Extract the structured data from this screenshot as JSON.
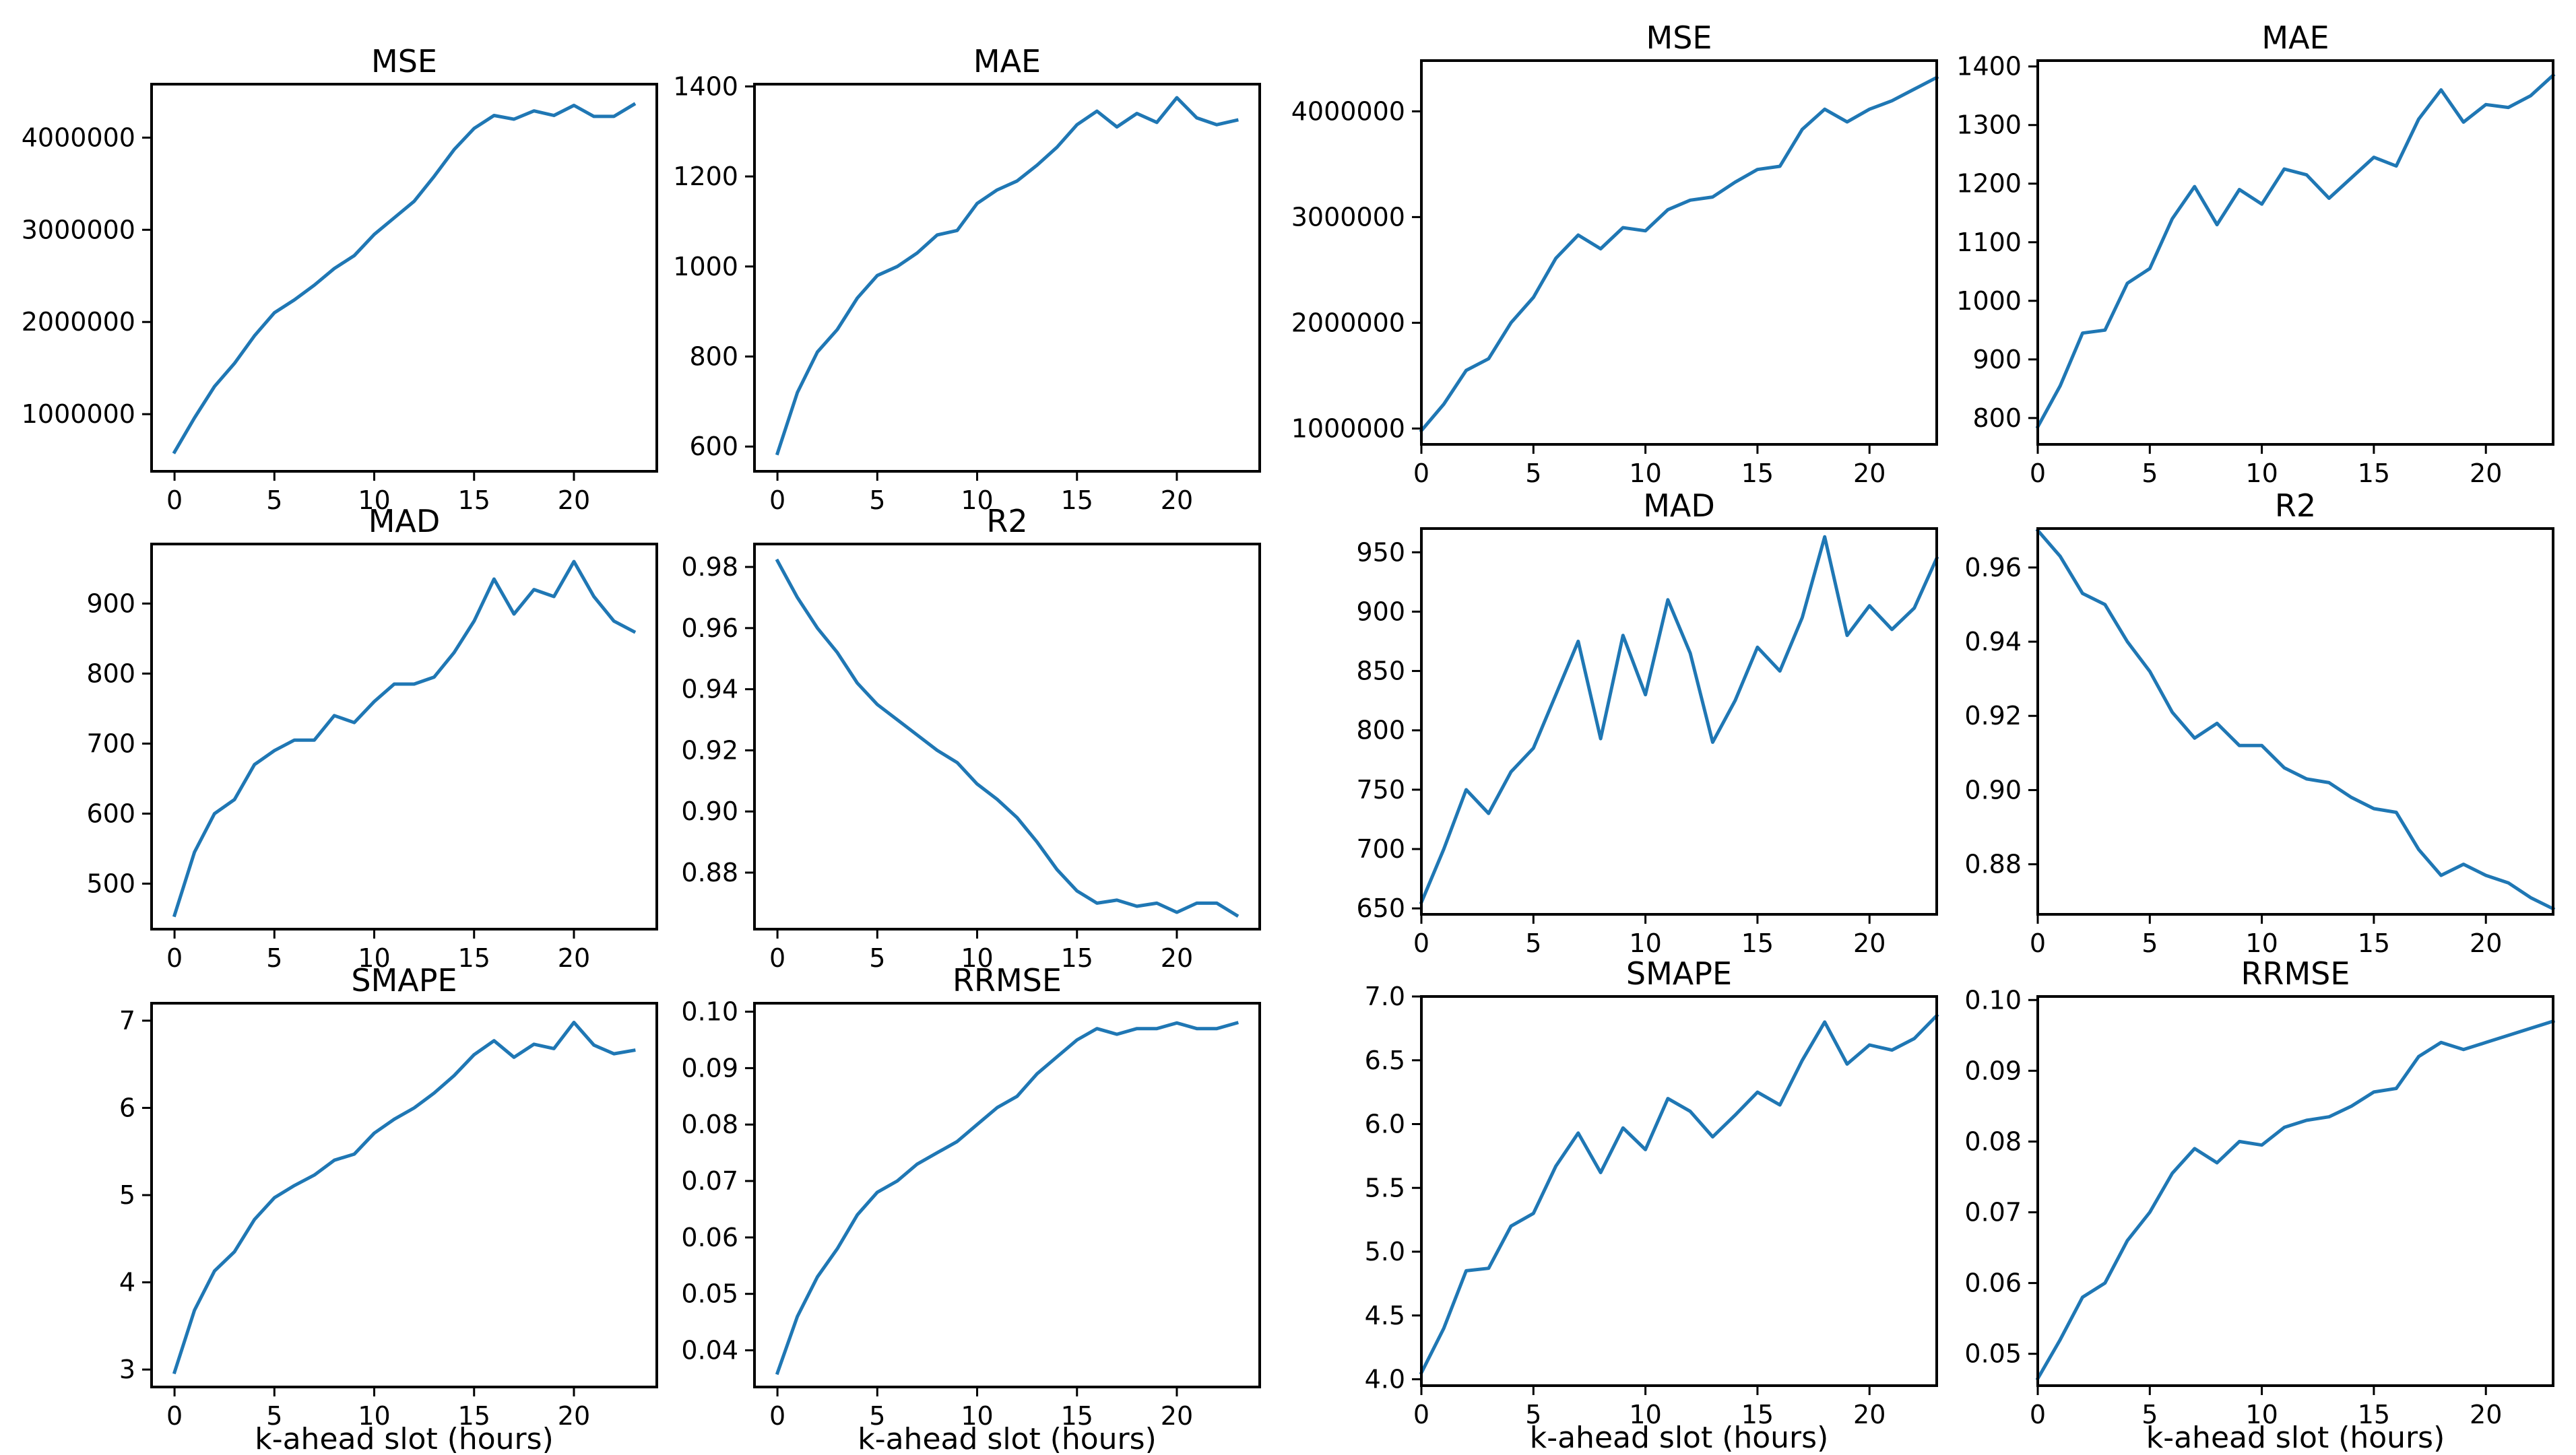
{
  "colors": {
    "line": "#1f77b4",
    "axis": "#000000",
    "background": "#ffffff"
  },
  "chart_data": [
    {
      "id": "left-mse",
      "type": "line",
      "title": "MSE",
      "xlabel": "",
      "xlim": [
        -1.15,
        24.15
      ],
      "ylim": [
        380000,
        4580000
      ],
      "xticks": [
        0,
        5,
        10,
        15,
        20
      ],
      "xtick_labels": [
        "0",
        "5",
        "10",
        "15",
        "20"
      ],
      "yticks": [
        1000000,
        2000000,
        3000000,
        4000000
      ],
      "ytick_labels": [
        "1000000",
        "2000000",
        "3000000",
        "4000000"
      ],
      "x": [
        0,
        1,
        2,
        3,
        4,
        5,
        6,
        7,
        8,
        9,
        10,
        11,
        12,
        13,
        14,
        15,
        16,
        17,
        18,
        19,
        20,
        21,
        22,
        23
      ],
      "values": [
        590000,
        960000,
        1300000,
        1550000,
        1850000,
        2100000,
        2240000,
        2400000,
        2580000,
        2720000,
        2950000,
        3130000,
        3310000,
        3580000,
        3870000,
        4100000,
        4240000,
        4200000,
        4290000,
        4240000,
        4350000,
        4230000,
        4230000,
        4360000
      ]
    },
    {
      "id": "left-mae",
      "type": "line",
      "title": "MAE",
      "xlabel": "",
      "xlim": [
        -1.15,
        24.15
      ],
      "ylim": [
        545,
        1405
      ],
      "xticks": [
        0,
        5,
        10,
        15,
        20
      ],
      "xtick_labels": [
        "0",
        "5",
        "10",
        "15",
        "20"
      ],
      "yticks": [
        600,
        800,
        1000,
        1200,
        1400
      ],
      "ytick_labels": [
        "600",
        "800",
        "1000",
        "1200",
        "1400"
      ],
      "x": [
        0,
        1,
        2,
        3,
        4,
        5,
        6,
        7,
        8,
        9,
        10,
        11,
        12,
        13,
        14,
        15,
        16,
        17,
        18,
        19,
        20,
        21,
        22,
        23
      ],
      "values": [
        585,
        720,
        810,
        860,
        930,
        980,
        1000,
        1030,
        1070,
        1080,
        1140,
        1170,
        1190,
        1225,
        1265,
        1315,
        1345,
        1310,
        1340,
        1320,
        1375,
        1330,
        1315,
        1325
      ]
    },
    {
      "id": "right-mse",
      "type": "line",
      "title": "MSE",
      "xlabel": "",
      "xlim": [
        0,
        23
      ],
      "ylim": [
        850000,
        4480000
      ],
      "xticks": [
        0,
        5,
        10,
        15,
        20
      ],
      "xtick_labels": [
        "0",
        "5",
        "10",
        "15",
        "20"
      ],
      "yticks": [
        1000000,
        2000000,
        3000000,
        4000000
      ],
      "ytick_labels": [
        "1000000",
        "2000000",
        "3000000",
        "4000000"
      ],
      "x": [
        0,
        1,
        2,
        3,
        4,
        5,
        6,
        7,
        8,
        9,
        10,
        11,
        12,
        13,
        14,
        15,
        16,
        17,
        18,
        19,
        20,
        21,
        22,
        23
      ],
      "values": [
        980000,
        1230000,
        1550000,
        1660000,
        2000000,
        2240000,
        2610000,
        2830000,
        2700000,
        2900000,
        2870000,
        3070000,
        3160000,
        3190000,
        3330000,
        3450000,
        3480000,
        3830000,
        4020000,
        3900000,
        4020000,
        4100000,
        4210000,
        4320000
      ]
    },
    {
      "id": "right-mae",
      "type": "line",
      "title": "MAE",
      "xlabel": "",
      "xlim": [
        0,
        23
      ],
      "ylim": [
        755,
        1410
      ],
      "xticks": [
        0,
        5,
        10,
        15,
        20
      ],
      "xtick_labels": [
        "0",
        "5",
        "10",
        "15",
        "20"
      ],
      "yticks": [
        800,
        900,
        1000,
        1100,
        1200,
        1300,
        1400
      ],
      "ytick_labels": [
        "800",
        "900",
        "1000",
        "1100",
        "1200",
        "1300",
        "1400"
      ],
      "x": [
        0,
        1,
        2,
        3,
        4,
        5,
        6,
        7,
        8,
        9,
        10,
        11,
        12,
        13,
        14,
        15,
        16,
        17,
        18,
        19,
        20,
        21,
        22,
        23
      ],
      "values": [
        785,
        855,
        945,
        950,
        1030,
        1055,
        1140,
        1195,
        1130,
        1190,
        1165,
        1225,
        1215,
        1175,
        1210,
        1245,
        1230,
        1310,
        1360,
        1305,
        1335,
        1330,
        1350,
        1385
      ]
    },
    {
      "id": "left-mad",
      "type": "line",
      "title": "MAD",
      "xlabel": "",
      "xlim": [
        -1.15,
        24.15
      ],
      "ylim": [
        435,
        985
      ],
      "xticks": [
        0,
        5,
        10,
        15,
        20
      ],
      "xtick_labels": [
        "0",
        "5",
        "10",
        "15",
        "20"
      ],
      "yticks": [
        500,
        600,
        700,
        800,
        900
      ],
      "ytick_labels": [
        "500",
        "600",
        "700",
        "800",
        "900"
      ],
      "x": [
        0,
        1,
        2,
        3,
        4,
        5,
        6,
        7,
        8,
        9,
        10,
        11,
        12,
        13,
        14,
        15,
        16,
        17,
        18,
        19,
        20,
        21,
        22,
        23
      ],
      "values": [
        455,
        545,
        600,
        620,
        670,
        690,
        705,
        705,
        740,
        730,
        760,
        785,
        785,
        795,
        830,
        875,
        935,
        885,
        920,
        910,
        960,
        910,
        875,
        860
      ]
    },
    {
      "id": "left-r2",
      "type": "line",
      "title": "R2",
      "xlabel": "",
      "xlim": [
        -1.15,
        24.15
      ],
      "ylim": [
        0.8615,
        0.9875
      ],
      "xticks": [
        0,
        5,
        10,
        15,
        20
      ],
      "xtick_labels": [
        "0",
        "5",
        "10",
        "15",
        "20"
      ],
      "yticks": [
        0.88,
        0.9,
        0.92,
        0.94,
        0.96,
        0.98
      ],
      "ytick_labels": [
        "0.88",
        "0.90",
        "0.92",
        "0.94",
        "0.96",
        "0.98"
      ],
      "x": [
        0,
        1,
        2,
        3,
        4,
        5,
        6,
        7,
        8,
        9,
        10,
        11,
        12,
        13,
        14,
        15,
        16,
        17,
        18,
        19,
        20,
        21,
        22,
        23
      ],
      "values": [
        0.982,
        0.97,
        0.96,
        0.952,
        0.942,
        0.935,
        0.93,
        0.925,
        0.92,
        0.916,
        0.909,
        0.904,
        0.898,
        0.89,
        0.881,
        0.874,
        0.87,
        0.871,
        0.869,
        0.87,
        0.867,
        0.87,
        0.87,
        0.866
      ]
    },
    {
      "id": "right-mad",
      "type": "line",
      "title": "MAD",
      "xlabel": "",
      "xlim": [
        0,
        23
      ],
      "ylim": [
        645,
        970
      ],
      "xticks": [
        0,
        5,
        10,
        15,
        20
      ],
      "xtick_labels": [
        "0",
        "5",
        "10",
        "15",
        "20"
      ],
      "yticks": [
        650,
        700,
        750,
        800,
        850,
        900,
        950
      ],
      "ytick_labels": [
        "650",
        "700",
        "750",
        "800",
        "850",
        "900",
        "950"
      ],
      "x": [
        0,
        1,
        2,
        3,
        4,
        5,
        6,
        7,
        8,
        9,
        10,
        11,
        12,
        13,
        14,
        15,
        16,
        17,
        18,
        19,
        20,
        21,
        22,
        23
      ],
      "values": [
        655,
        700,
        750,
        730,
        765,
        785,
        830,
        875,
        793,
        880,
        830,
        910,
        865,
        790,
        825,
        870,
        850,
        895,
        963,
        880,
        905,
        885,
        903,
        945
      ]
    },
    {
      "id": "right-r2",
      "type": "line",
      "title": "R2",
      "xlabel": "",
      "xlim": [
        0,
        23
      ],
      "ylim": [
        0.8665,
        0.9705
      ],
      "xticks": [
        0,
        5,
        10,
        15,
        20
      ],
      "xtick_labels": [
        "0",
        "5",
        "10",
        "15",
        "20"
      ],
      "yticks": [
        0.88,
        0.9,
        0.92,
        0.94,
        0.96
      ],
      "ytick_labels": [
        "0.88",
        "0.90",
        "0.92",
        "0.94",
        "0.96"
      ],
      "x": [
        0,
        1,
        2,
        3,
        4,
        5,
        6,
        7,
        8,
        9,
        10,
        11,
        12,
        13,
        14,
        15,
        16,
        17,
        18,
        19,
        20,
        21,
        22,
        23
      ],
      "values": [
        0.97,
        0.963,
        0.953,
        0.95,
        0.94,
        0.932,
        0.921,
        0.914,
        0.918,
        0.912,
        0.912,
        0.906,
        0.903,
        0.902,
        0.898,
        0.895,
        0.894,
        0.884,
        0.877,
        0.88,
        0.877,
        0.875,
        0.871,
        0.868
      ]
    },
    {
      "id": "left-smape",
      "type": "line",
      "title": "SMAPE",
      "xlabel": "k-ahead slot (hours)",
      "xlim": [
        -1.15,
        24.15
      ],
      "ylim": [
        2.8,
        7.2
      ],
      "xticks": [
        0,
        5,
        10,
        15,
        20
      ],
      "xtick_labels": [
        "0",
        "5",
        "10",
        "15",
        "20"
      ],
      "yticks": [
        3,
        4,
        5,
        6,
        7
      ],
      "ytick_labels": [
        "3",
        "4",
        "5",
        "6",
        "7"
      ],
      "x": [
        0,
        1,
        2,
        3,
        4,
        5,
        6,
        7,
        8,
        9,
        10,
        11,
        12,
        13,
        14,
        15,
        16,
        17,
        18,
        19,
        20,
        21,
        22,
        23
      ],
      "values": [
        2.97,
        3.68,
        4.13,
        4.35,
        4.72,
        4.97,
        5.11,
        5.23,
        5.4,
        5.47,
        5.71,
        5.87,
        6.0,
        6.17,
        6.37,
        6.61,
        6.77,
        6.58,
        6.73,
        6.68,
        6.98,
        6.72,
        6.62,
        6.66
      ]
    },
    {
      "id": "left-rrmse",
      "type": "line",
      "title": "RRMSE",
      "xlabel": "k-ahead slot (hours)",
      "xlim": [
        -1.15,
        24.15
      ],
      "ylim": [
        0.0335,
        0.1015
      ],
      "xticks": [
        0,
        5,
        10,
        15,
        20
      ],
      "xtick_labels": [
        "0",
        "5",
        "10",
        "15",
        "20"
      ],
      "yticks": [
        0.04,
        0.05,
        0.06,
        0.07,
        0.08,
        0.09,
        0.1
      ],
      "ytick_labels": [
        "0.04",
        "0.05",
        "0.06",
        "0.07",
        "0.08",
        "0.09",
        "0.10"
      ],
      "x": [
        0,
        1,
        2,
        3,
        4,
        5,
        6,
        7,
        8,
        9,
        10,
        11,
        12,
        13,
        14,
        15,
        16,
        17,
        18,
        19,
        20,
        21,
        22,
        23
      ],
      "values": [
        0.036,
        0.046,
        0.053,
        0.058,
        0.064,
        0.068,
        0.07,
        0.073,
        0.075,
        0.077,
        0.08,
        0.083,
        0.085,
        0.089,
        0.092,
        0.095,
        0.097,
        0.096,
        0.097,
        0.097,
        0.098,
        0.097,
        0.097,
        0.098
      ]
    },
    {
      "id": "right-smape",
      "type": "line",
      "title": "SMAPE",
      "xlabel": "k-ahead slot (hours)",
      "xlim": [
        0,
        23
      ],
      "ylim": [
        3.95,
        7.0
      ],
      "xticks": [
        0,
        5,
        10,
        15,
        20
      ],
      "xtick_labels": [
        "0",
        "5",
        "10",
        "15",
        "20"
      ],
      "yticks": [
        4.0,
        4.5,
        5.0,
        5.5,
        6.0,
        6.5,
        7.0
      ],
      "ytick_labels": [
        "4.0",
        "4.5",
        "5.0",
        "5.5",
        "6.0",
        "6.5",
        "7.0"
      ],
      "x": [
        0,
        1,
        2,
        3,
        4,
        5,
        6,
        7,
        8,
        9,
        10,
        11,
        12,
        13,
        14,
        15,
        16,
        17,
        18,
        19,
        20,
        21,
        22,
        23
      ],
      "values": [
        4.05,
        4.4,
        4.85,
        4.87,
        5.2,
        5.3,
        5.67,
        5.93,
        5.62,
        5.97,
        5.8,
        6.2,
        6.1,
        5.9,
        6.07,
        6.25,
        6.15,
        6.5,
        6.8,
        6.47,
        6.62,
        6.58,
        6.67,
        6.85
      ]
    },
    {
      "id": "right-rrmse",
      "type": "line",
      "title": "RRMSE",
      "xlabel": "k-ahead slot (hours)",
      "xlim": [
        0,
        23
      ],
      "ylim": [
        0.0455,
        0.1005
      ],
      "xticks": [
        0,
        5,
        10,
        15,
        20
      ],
      "xtick_labels": [
        "0",
        "5",
        "10",
        "15",
        "20"
      ],
      "yticks": [
        0.05,
        0.06,
        0.07,
        0.08,
        0.09,
        0.1
      ],
      "ytick_labels": [
        "0.05",
        "0.06",
        "0.07",
        "0.08",
        "0.09",
        "0.10"
      ],
      "x": [
        0,
        1,
        2,
        3,
        4,
        5,
        6,
        7,
        8,
        9,
        10,
        11,
        12,
        13,
        14,
        15,
        16,
        17,
        18,
        19,
        20,
        21,
        22,
        23
      ],
      "values": [
        0.0465,
        0.052,
        0.058,
        0.06,
        0.066,
        0.07,
        0.0755,
        0.079,
        0.077,
        0.08,
        0.0795,
        0.082,
        0.083,
        0.0835,
        0.085,
        0.087,
        0.0875,
        0.092,
        0.094,
        0.093,
        0.094,
        0.095,
        0.096,
        0.097
      ]
    }
  ]
}
